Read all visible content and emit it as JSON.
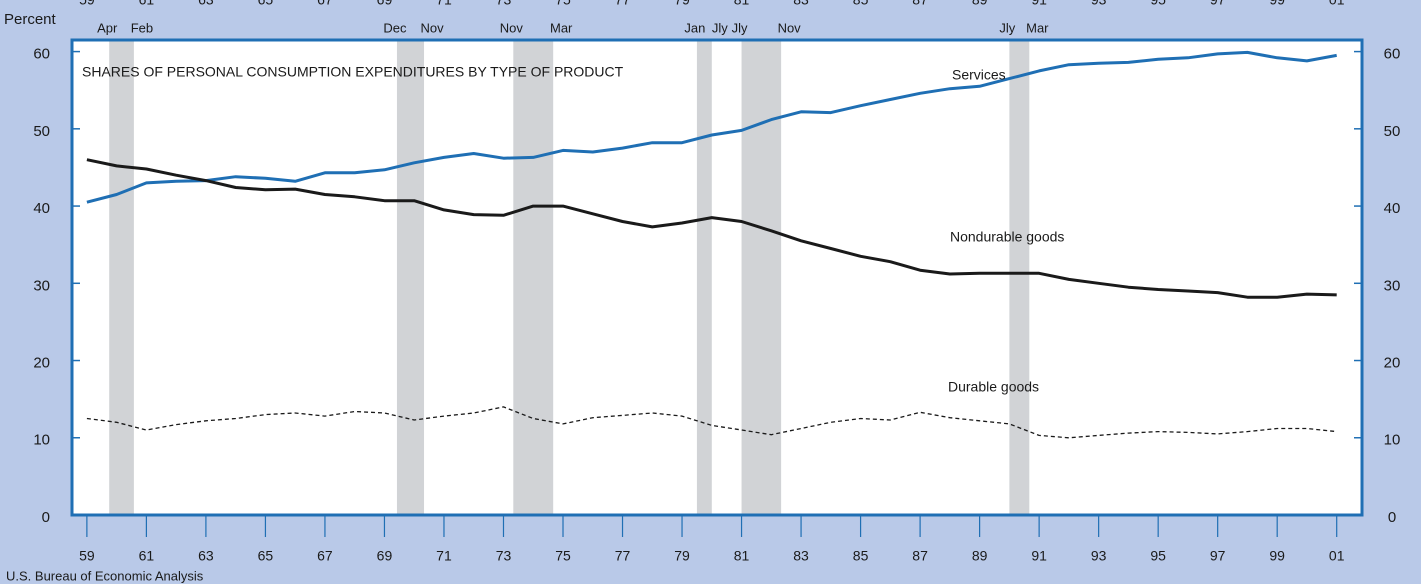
{
  "chart_data": {
    "type": "line",
    "title": "SHARES OF PERSONAL CONSUMPTION EXPENDITURES BY TYPE OF PRODUCT",
    "y_label": "Percent",
    "source": "U.S. Bureau of Economic Analysis",
    "x": [
      1959.5,
      1960.5,
      1961.5,
      1962.5,
      1963.5,
      1964.5,
      1965.5,
      1966.5,
      1967.5,
      1968.5,
      1969.5,
      1970.5,
      1971.5,
      1972.5,
      1973.5,
      1974.5,
      1975.5,
      1976.5,
      1977.5,
      1978.5,
      1979.5,
      1980.5,
      1981.5,
      1982.5,
      1983.5,
      1984.5,
      1985.5,
      1986.5,
      1987.5,
      1988.5,
      1989.5,
      1990.5,
      1991.5,
      1992.5,
      1993.5,
      1994.5,
      1995.5,
      1996.5,
      1997.5,
      1998.5,
      1999.5,
      2000.5,
      2001.5
    ],
    "series": [
      {
        "name": "Services",
        "color": "#1f6fb4",
        "dashed": false,
        "values": [
          40.5,
          41.5,
          43,
          43.2,
          43.3,
          43.8,
          43.6,
          43.2,
          44.3,
          44.3,
          44.7,
          45.6,
          46.3,
          46.8,
          46.2,
          46.3,
          47.2,
          47,
          47.5,
          48.2,
          48.2,
          49.2,
          49.8,
          51.2,
          52.2,
          52.1,
          53,
          53.8,
          54.6,
          55.2,
          55.5,
          56.5,
          57.5,
          58.3,
          58.5,
          58.6,
          59,
          59.2,
          59.7,
          59.9,
          59.2,
          58.8,
          59.5
        ]
      },
      {
        "name": "Nondurable goods",
        "color": "#1a1a1a",
        "dashed": false,
        "values": [
          46,
          45.2,
          44.8,
          44,
          43.3,
          42.4,
          42.1,
          42.2,
          41.5,
          41.2,
          40.7,
          40.7,
          39.5,
          38.9,
          38.8,
          40,
          40,
          39,
          38,
          37.3,
          37.8,
          38.5,
          38,
          36.8,
          35.5,
          34.5,
          33.5,
          32.8,
          31.7,
          31.2,
          31.3,
          31.3,
          31.3,
          30.5,
          30,
          29.5,
          29.2,
          29,
          28.8,
          28.2,
          28.2,
          28.6,
          28.5
        ]
      },
      {
        "name": "Durable goods",
        "color": "#1a1a1a",
        "dashed": true,
        "values": [
          12.5,
          12,
          11,
          11.7,
          12.2,
          12.5,
          13,
          13.2,
          12.8,
          13.4,
          13.2,
          12.3,
          12.8,
          13.2,
          14,
          12.5,
          11.8,
          12.6,
          12.9,
          13.2,
          12.8,
          11.6,
          11,
          10.4,
          11.2,
          12,
          12.5,
          12.3,
          13.3,
          12.6,
          12.2,
          11.8,
          10.3,
          10,
          10.3,
          10.6,
          10.8,
          10.7,
          10.5,
          10.8,
          11.2,
          11.2,
          10.8
        ]
      }
    ],
    "recessions": [
      {
        "start": 1960.25,
        "end": 1961.08,
        "start_label": "Apr",
        "end_label": "Feb"
      },
      {
        "start": 1969.92,
        "end": 1970.83,
        "start_label": "Dec",
        "end_label": "Nov"
      },
      {
        "start": 1973.83,
        "end": 1975.17,
        "start_label": "Nov",
        "end_label": "Mar"
      },
      {
        "start": 1980.0,
        "end": 1980.5,
        "start_label": "Jan",
        "end_label": "Jly"
      },
      {
        "start": 1981.5,
        "end": 1982.83,
        "start_label": "Jly",
        "end_label": "Nov"
      },
      {
        "start": 1990.5,
        "end": 1991.17,
        "start_label": "Jly",
        "end_label": "Mar"
      }
    ],
    "xlim": [
      1959,
      2002.35
    ],
    "xticks": [
      {
        "value": 1959.5,
        "label": "59"
      },
      {
        "value": 1961.5,
        "label": "61"
      },
      {
        "value": 1963.5,
        "label": "63"
      },
      {
        "value": 1965.5,
        "label": "65"
      },
      {
        "value": 1967.5,
        "label": "67"
      },
      {
        "value": 1969.5,
        "label": "69"
      },
      {
        "value": 1971.5,
        "label": "71"
      },
      {
        "value": 1973.5,
        "label": "73"
      },
      {
        "value": 1975.5,
        "label": "75"
      },
      {
        "value": 1977.5,
        "label": "77"
      },
      {
        "value": 1979.5,
        "label": "79"
      },
      {
        "value": 1981.5,
        "label": "81"
      },
      {
        "value": 1983.5,
        "label": "83"
      },
      {
        "value": 1985.5,
        "label": "85"
      },
      {
        "value": 1987.5,
        "label": "87"
      },
      {
        "value": 1989.5,
        "label": "89"
      },
      {
        "value": 1991.5,
        "label": "91"
      },
      {
        "value": 1993.5,
        "label": "93"
      },
      {
        "value": 1995.5,
        "label": "95"
      },
      {
        "value": 1997.5,
        "label": "97"
      },
      {
        "value": 1999.5,
        "label": "99"
      },
      {
        "value": 2001.5,
        "label": "01"
      }
    ],
    "ylim": [
      0,
      61.5
    ],
    "yticks": [
      0,
      10,
      20,
      30,
      40,
      50,
      60
    ],
    "y2lim": [
      0,
      61.5
    ],
    "y2ticks": [
      0,
      10,
      20,
      30,
      40,
      50,
      60
    ],
    "recession_color": "#d1d3d6",
    "background": "#b9c9e8"
  }
}
